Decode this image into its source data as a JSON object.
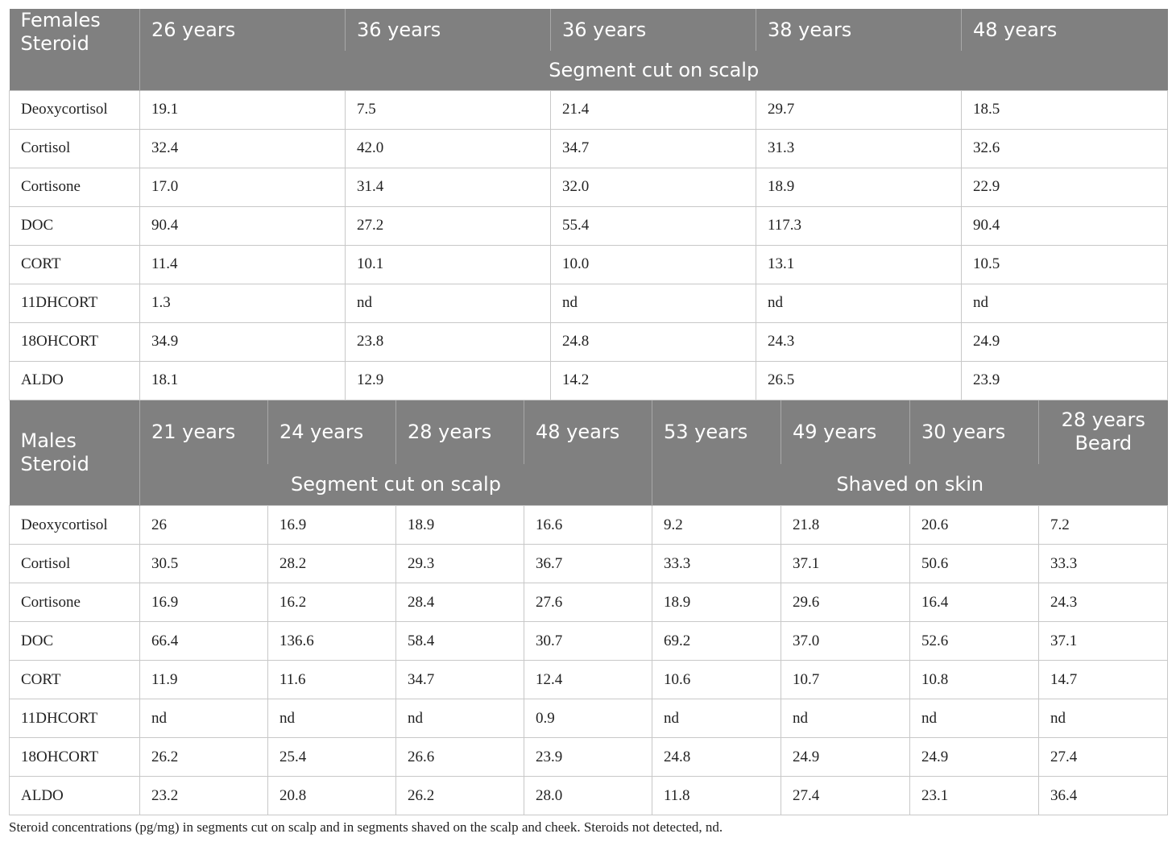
{
  "females": {
    "corner_label": "Females\nSteroid",
    "ages": [
      "26 years",
      "36 years",
      "36 years",
      "38 years",
      "48 years"
    ],
    "group_label": "Segment cut on scalp",
    "rows": [
      {
        "name": "Deoxycortisol",
        "values": [
          "19.1",
          "7.5",
          "21.4",
          "29.7",
          "18.5"
        ]
      },
      {
        "name": "Cortisol",
        "values": [
          "32.4",
          "42.0",
          "34.7",
          "31.3",
          "32.6"
        ]
      },
      {
        "name": "Cortisone",
        "values": [
          "17.0",
          "31.4",
          "32.0",
          "18.9",
          "22.9"
        ]
      },
      {
        "name": "DOC",
        "values": [
          "90.4",
          "27.2",
          "55.4",
          "117.3",
          "90.4"
        ]
      },
      {
        "name": "CORT",
        "values": [
          "11.4",
          "10.1",
          "10.0",
          "13.1",
          "10.5"
        ]
      },
      {
        "name": "11DHCORT",
        "values": [
          "1.3",
          "nd",
          "nd",
          "nd",
          "nd"
        ]
      },
      {
        "name": "18OHCORT",
        "values": [
          "34.9",
          "23.8",
          "24.8",
          "24.3",
          "24.9"
        ]
      },
      {
        "name": "ALDO",
        "values": [
          "18.1",
          "12.9",
          "14.2",
          "26.5",
          "23.9"
        ]
      }
    ]
  },
  "males": {
    "corner_label": "Males\nSteroid",
    "ages": [
      "21 years",
      "24 years",
      "28 years",
      "48 years",
      "53 years",
      "49 years",
      "30 years",
      "28 years\nBeard"
    ],
    "group_labels": [
      "Segment cut on scalp",
      "Shaved on skin"
    ],
    "rows": [
      {
        "name": "Deoxycortisol",
        "values": [
          "26",
          "16.9",
          "18.9",
          "16.6",
          "9.2",
          "21.8",
          "20.6",
          "7.2"
        ]
      },
      {
        "name": "Cortisol",
        "values": [
          "30.5",
          "28.2",
          "29.3",
          "36.7",
          "33.3",
          "37.1",
          "50.6",
          "33.3"
        ]
      },
      {
        "name": "Cortisone",
        "values": [
          "16.9",
          "16.2",
          "28.4",
          "27.6",
          "18.9",
          "29.6",
          "16.4",
          "24.3"
        ]
      },
      {
        "name": "DOC",
        "values": [
          "66.4",
          "136.6",
          "58.4",
          "30.7",
          "69.2",
          "37.0",
          "52.6",
          "37.1"
        ]
      },
      {
        "name": "CORT",
        "values": [
          "11.9",
          "11.6",
          "34.7",
          "12.4",
          "10.6",
          "10.7",
          "10.8",
          "14.7"
        ]
      },
      {
        "name": "11DHCORT",
        "values": [
          "nd",
          "nd",
          "nd",
          "0.9",
          "nd",
          "nd",
          "nd",
          "nd"
        ]
      },
      {
        "name": "18OHCORT",
        "values": [
          "26.2",
          "25.4",
          "26.6",
          "23.9",
          "24.8",
          "24.9",
          "24.9",
          "27.4"
        ]
      },
      {
        "name": "ALDO",
        "values": [
          "23.2",
          "20.8",
          "26.2",
          "28.0",
          "11.8",
          "27.4",
          "23.1",
          "36.4"
        ]
      }
    ]
  },
  "caption": "Steroid concentrations (pg/mg) in segments cut on scalp and in segments shaved on the scalp and cheek. Steroids not detected, nd."
}
